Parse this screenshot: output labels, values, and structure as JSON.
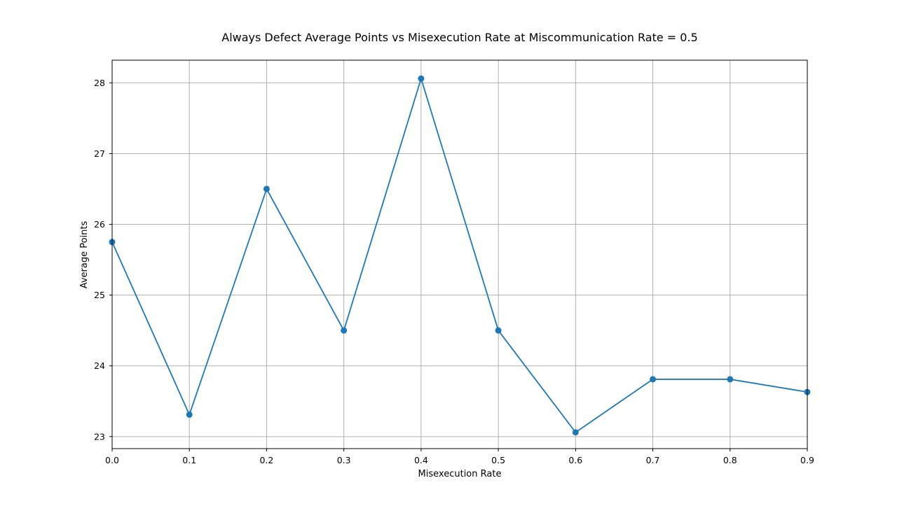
{
  "chart_data": {
    "type": "line",
    "title": "Always Defect Average Points vs Misexecution Rate at Miscommunication Rate = 0.5",
    "xlabel": "Misexecution Rate",
    "ylabel": "Average Points",
    "x": [
      0.0,
      0.1,
      0.2,
      0.3,
      0.4,
      0.5,
      0.6,
      0.7,
      0.8,
      0.9
    ],
    "series": [
      {
        "values": [
          25.75,
          23.31,
          26.5,
          24.5,
          28.06,
          24.5,
          23.06,
          23.81,
          23.81,
          23.63
        ],
        "color": "#1f77b4",
        "marker": "circle"
      }
    ],
    "xlim": [
      0.0,
      0.9
    ],
    "ylim": [
      22.83,
      28.32
    ],
    "xticks": [
      "0.0",
      "0.1",
      "0.2",
      "0.3",
      "0.4",
      "0.5",
      "0.6",
      "0.7",
      "0.8",
      "0.9"
    ],
    "yticks": [
      "23",
      "24",
      "25",
      "26",
      "27",
      "28"
    ],
    "grid": true
  }
}
